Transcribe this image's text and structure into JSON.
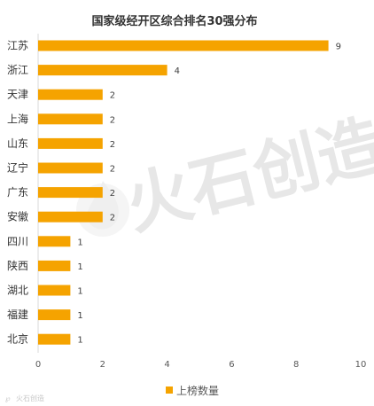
{
  "chart_data": {
    "type": "bar",
    "orientation": "horizontal",
    "title": "国家级经开区综合排名30强分布",
    "categories": [
      "江苏",
      "浙江",
      "天津",
      "上海",
      "山东",
      "辽宁",
      "广东",
      "安徽",
      "四川",
      "陕西",
      "湖北",
      "福建",
      "北京"
    ],
    "series": [
      {
        "name": "上榜数量",
        "values": [
          9,
          4,
          2,
          2,
          2,
          2,
          2,
          2,
          1,
          1,
          1,
          1,
          1
        ]
      }
    ],
    "xlim": [
      0,
      10
    ],
    "xticks": [
      0,
      2,
      4,
      6,
      8,
      10
    ],
    "grid": false,
    "legend": "bottom",
    "colors": {
      "bar": "#f5a300",
      "axis": "#d9d9d9"
    }
  },
  "watermark": {
    "text": "火石创造"
  },
  "corner_logo": {
    "text": "火石创造"
  }
}
